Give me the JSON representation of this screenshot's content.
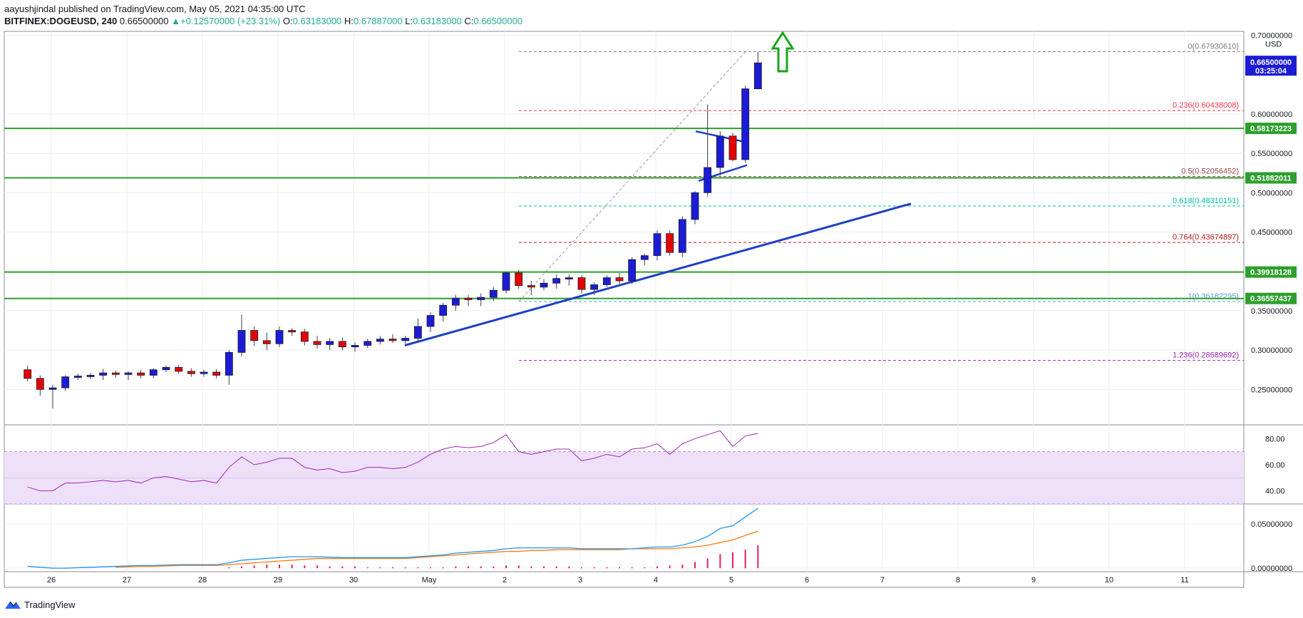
{
  "header": {
    "line1": {
      "author": "aayushjindal",
      "published": " published on TradingView.com, May 05, 2021 04:35:00 UTC"
    },
    "line2": {
      "symbol": "BITFINEX:DOGEUSD, 240",
      "last": "0.66500000",
      "change_arrow": "▲",
      "change": "+0.12570000 (+23.31%)",
      "open_label": "O:",
      "open": "0.63183000",
      "high_label": "H:",
      "high": "0.67887000",
      "low_label": "L:",
      "low": "0.63183000",
      "close_label": "C:",
      "close": "0.66500000"
    }
  },
  "footer": {
    "brand": "TradingView"
  },
  "colors": {
    "up": "#1c1cd6",
    "down": "#e50000",
    "support": "#2e9e2e",
    "trend": "#1e3fc6",
    "rsi": "#9c27b0",
    "rsi_band": "#efe0fa",
    "ma_fast": "#2196f3",
    "ma_slow": "#ff7c0a",
    "hist": "#e91e63",
    "arrow": "#19a619"
  },
  "chart_data": [
    {
      "type": "candlestick",
      "currency_label": "USD",
      "ylim": [
        0.205,
        0.705
      ],
      "y_ticks": [
        {
          "value": 0.7,
          "label": "0.70000000"
        },
        {
          "value": 0.6,
          "label": "0.60000000"
        },
        {
          "value": 0.55,
          "label": "0.55000000"
        },
        {
          "value": 0.5,
          "label": "0.50000000"
        },
        {
          "value": 0.45,
          "label": "0.45000000"
        },
        {
          "value": 0.35,
          "label": "0.35000000"
        },
        {
          "value": 0.3,
          "label": "0.30000000"
        },
        {
          "value": 0.25,
          "label": "0.25000000"
        }
      ],
      "x_ticks": [
        "26",
        "27",
        "28",
        "29",
        "30",
        "May",
        "2",
        "3",
        "4",
        "5",
        "6",
        "7",
        "8",
        "9",
        "10",
        "11"
      ],
      "candles": [
        [
          0.275,
          0.28,
          0.26,
          0.264
        ],
        [
          0.264,
          0.268,
          0.242,
          0.25
        ],
        [
          0.25,
          0.256,
          0.226,
          0.252
        ],
        [
          0.252,
          0.268,
          0.248,
          0.266
        ],
        [
          0.266,
          0.27,
          0.262,
          0.267
        ],
        [
          0.267,
          0.271,
          0.263,
          0.268
        ],
        [
          0.268,
          0.276,
          0.262,
          0.271
        ],
        [
          0.271,
          0.274,
          0.265,
          0.269
        ],
        [
          0.269,
          0.273,
          0.262,
          0.271
        ],
        [
          0.271,
          0.275,
          0.264,
          0.268
        ],
        [
          0.268,
          0.277,
          0.264,
          0.275
        ],
        [
          0.275,
          0.28,
          0.272,
          0.278
        ],
        [
          0.278,
          0.281,
          0.27,
          0.273
        ],
        [
          0.273,
          0.277,
          0.266,
          0.27
        ],
        [
          0.27,
          0.275,
          0.266,
          0.272
        ],
        [
          0.272,
          0.276,
          0.264,
          0.268
        ],
        [
          0.268,
          0.3,
          0.256,
          0.297
        ],
        [
          0.297,
          0.345,
          0.292,
          0.325
        ],
        [
          0.325,
          0.33,
          0.305,
          0.312
        ],
        [
          0.312,
          0.322,
          0.3,
          0.308
        ],
        [
          0.308,
          0.33,
          0.304,
          0.325
        ],
        [
          0.325,
          0.328,
          0.318,
          0.323
        ],
        [
          0.323,
          0.327,
          0.306,
          0.311
        ],
        [
          0.311,
          0.318,
          0.302,
          0.307
        ],
        [
          0.307,
          0.315,
          0.3,
          0.311
        ],
        [
          0.311,
          0.316,
          0.3,
          0.304
        ],
        [
          0.304,
          0.31,
          0.298,
          0.306
        ],
        [
          0.306,
          0.314,
          0.303,
          0.311
        ],
        [
          0.311,
          0.318,
          0.307,
          0.314
        ],
        [
          0.314,
          0.32,
          0.309,
          0.312
        ],
        [
          0.312,
          0.318,
          0.308,
          0.315
        ],
        [
          0.315,
          0.34,
          0.31,
          0.33
        ],
        [
          0.33,
          0.348,
          0.323,
          0.344
        ],
        [
          0.344,
          0.36,
          0.336,
          0.357
        ],
        [
          0.357,
          0.37,
          0.35,
          0.366
        ],
        [
          0.366,
          0.37,
          0.356,
          0.364
        ],
        [
          0.364,
          0.372,
          0.356,
          0.367
        ],
        [
          0.367,
          0.38,
          0.362,
          0.376
        ],
        [
          0.376,
          0.4,
          0.372,
          0.398
        ],
        [
          0.398,
          0.402,
          0.378,
          0.382
        ],
        [
          0.382,
          0.388,
          0.37,
          0.38
        ],
        [
          0.38,
          0.39,
          0.376,
          0.385
        ],
        [
          0.385,
          0.396,
          0.378,
          0.391
        ],
        [
          0.391,
          0.396,
          0.382,
          0.392
        ],
        [
          0.392,
          0.395,
          0.372,
          0.377
        ],
        [
          0.377,
          0.386,
          0.37,
          0.383
        ],
        [
          0.383,
          0.395,
          0.38,
          0.392
        ],
        [
          0.392,
          0.398,
          0.384,
          0.388
        ],
        [
          0.388,
          0.418,
          0.384,
          0.415
        ],
        [
          0.415,
          0.422,
          0.408,
          0.42
        ],
        [
          0.42,
          0.452,
          0.414,
          0.448
        ],
        [
          0.448,
          0.452,
          0.42,
          0.424
        ],
        [
          0.424,
          0.47,
          0.418,
          0.466
        ],
        [
          0.466,
          0.502,
          0.46,
          0.5
        ],
        [
          0.5,
          0.612,
          0.495,
          0.532
        ],
        [
          0.532,
          0.578,
          0.522,
          0.572
        ],
        [
          0.572,
          0.576,
          0.54,
          0.542
        ],
        [
          0.542,
          0.636,
          0.538,
          0.632
        ],
        [
          0.632,
          0.6789,
          0.6318,
          0.665
        ]
      ],
      "horizontal_levels": [
        {
          "value": 0.58173223,
          "label": "0.58173223"
        },
        {
          "value": 0.51882011,
          "label": "0.51882011"
        },
        {
          "value": 0.39918128,
          "label": "0.39918128"
        },
        {
          "value": 0.36557437,
          "label": "0.36557437"
        }
      ],
      "last_price": {
        "value": 0.665,
        "label": "0.66500000",
        "countdown": "03:25:04"
      },
      "fibonacci": [
        {
          "ratio": 0,
          "value": 0.6793061,
          "label": "0(0.67930610)",
          "color": "#787b86"
        },
        {
          "ratio": 0.236,
          "value": 0.60438008,
          "label": "0.236(0.60438008)",
          "color": "#f23645"
        },
        {
          "ratio": 0.5,
          "value": 0.52056452,
          "label": "0.5(0.52056452)",
          "color": "#9c4a4a"
        },
        {
          "ratio": 0.618,
          "value": 0.48310151,
          "label": "0.618(0.48310151)",
          "color": "#00bfa5"
        },
        {
          "ratio": 0.764,
          "value": 0.43674897,
          "label": "0.764(0.43674897)",
          "color": "#b71c1c"
        },
        {
          "ratio": 1,
          "value": 0.36182295,
          "label": "1(0.36182295)",
          "color": "#4fa3e0"
        },
        {
          "ratio": 1.236,
          "value": 0.28689692,
          "label": "1.236(0.28689692)",
          "color": "#9c27b0"
        }
      ]
    },
    {
      "type": "line",
      "name": "RSI",
      "ylim": [
        30,
        90
      ],
      "band": [
        30,
        70
      ],
      "y_ticks": [
        {
          "value": 80,
          "label": "80.00"
        },
        {
          "value": 60,
          "label": "60.00"
        },
        {
          "value": 40,
          "label": "40.00"
        }
      ],
      "values": [
        43,
        40,
        40,
        46,
        46,
        47,
        48,
        47,
        48,
        46,
        50,
        51,
        49,
        47,
        48,
        46,
        58,
        66,
        60,
        62,
        65,
        65,
        58,
        56,
        57,
        54,
        55,
        58,
        58,
        57,
        58,
        62,
        68,
        72,
        74,
        73,
        74,
        77,
        83,
        70,
        68,
        70,
        72,
        72,
        63,
        65,
        68,
        66,
        72,
        73,
        76,
        68,
        76,
        80,
        83,
        86,
        74,
        82,
        84
      ]
    },
    {
      "type": "line",
      "name": "Indicator",
      "ylim": [
        -0.004,
        0.072
      ],
      "y_ticks": [
        {
          "value": 0.05,
          "label": "0.05000000"
        },
        {
          "value": 0.0,
          "label": "0.00000000"
        }
      ],
      "fast": [
        0.002,
        0.001,
        0.0,
        0.0,
        0.0005,
        0.001,
        0.0015,
        0.002,
        0.0025,
        0.003,
        0.003,
        0.0035,
        0.004,
        0.004,
        0.004,
        0.004,
        0.006,
        0.009,
        0.01,
        0.011,
        0.012,
        0.013,
        0.013,
        0.013,
        0.0125,
        0.012,
        0.012,
        0.012,
        0.012,
        0.012,
        0.012,
        0.013,
        0.014,
        0.015,
        0.017,
        0.018,
        0.019,
        0.02,
        0.022,
        0.023,
        0.023,
        0.023,
        0.023,
        0.023,
        0.022,
        0.022,
        0.022,
        0.022,
        0.022,
        0.023,
        0.024,
        0.024,
        0.026,
        0.03,
        0.036,
        0.045,
        0.048,
        0.058,
        0.068
      ],
      "slow": [
        null,
        null,
        null,
        null,
        null,
        null,
        null,
        0.001,
        0.0015,
        0.002,
        0.002,
        0.0025,
        0.003,
        0.003,
        0.003,
        0.003,
        0.004,
        0.005,
        0.006,
        0.007,
        0.008,
        0.009,
        0.01,
        0.011,
        0.011,
        0.011,
        0.011,
        0.011,
        0.011,
        0.011,
        0.011,
        0.012,
        0.013,
        0.014,
        0.015,
        0.016,
        0.017,
        0.018,
        0.019,
        0.019,
        0.02,
        0.02,
        0.021,
        0.021,
        0.021,
        0.021,
        0.021,
        0.021,
        0.022,
        0.022,
        0.022,
        0.022,
        0.023,
        0.024,
        0.026,
        0.029,
        0.032,
        0.037,
        0.042
      ],
      "histogram": [
        0,
        0,
        0,
        0,
        0,
        0,
        0,
        0,
        0,
        0,
        0,
        0,
        0,
        0,
        0,
        0,
        0.001,
        0.002,
        0.003,
        0.004,
        0.004,
        0.004,
        0.003,
        0.003,
        0.002,
        0.002,
        0.002,
        0.001,
        0.001,
        0.001,
        0.001,
        0.001,
        0.001,
        0.001,
        0.002,
        0.002,
        0.002,
        0.002,
        0.003,
        0.003,
        0.002,
        0.002,
        0.002,
        0.002,
        0.001,
        0.001,
        0.001,
        0.001,
        0.001,
        0.001,
        0.002,
        0.003,
        0.004,
        0.007,
        0.011,
        0.016,
        0.018,
        0.021,
        0.026
      ]
    }
  ]
}
